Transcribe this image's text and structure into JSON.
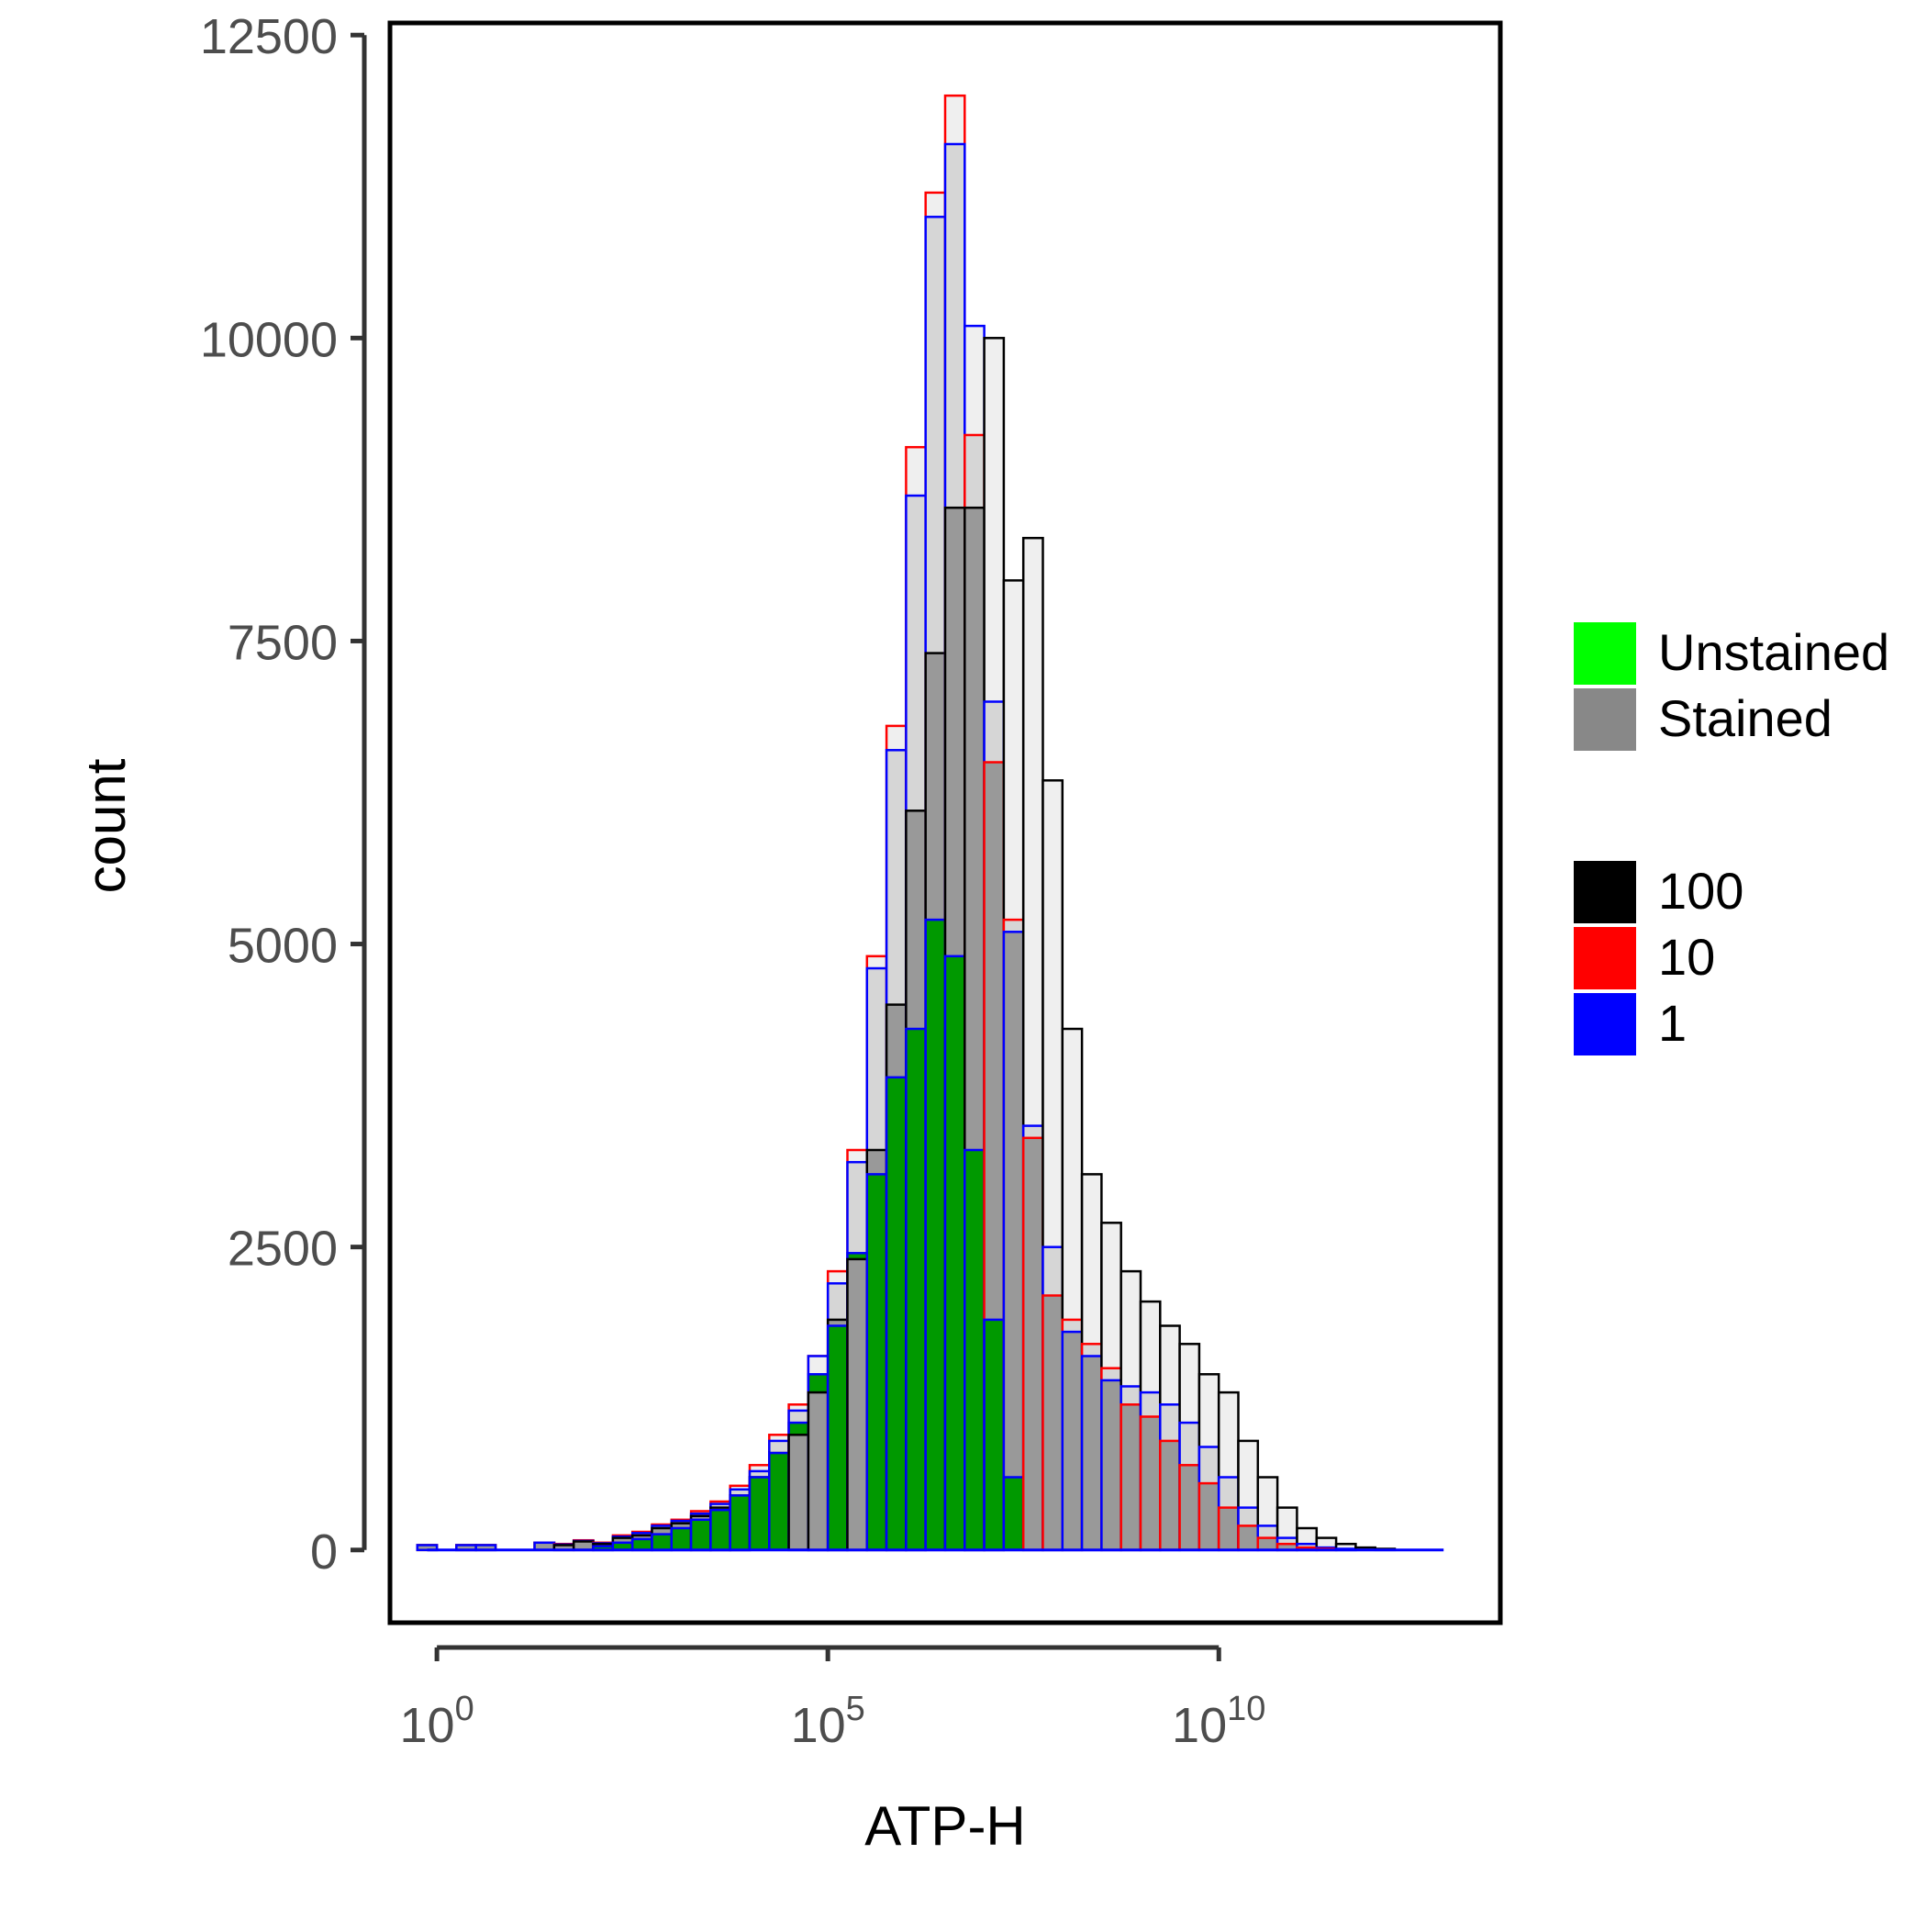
{
  "colors": {
    "unstained_fill": "#009900",
    "stained_fill": "#999999",
    "stained_light_fill": "#efefef",
    "series_100": "#000000",
    "series_10": "#ff0000",
    "series_1": "#0000ff",
    "legend_unstained": "#00ff00",
    "legend_stained": "#888888"
  },
  "chart_data": {
    "type": "histogram",
    "title": "",
    "xlabel": "ATP-H",
    "ylabel": "count",
    "x_scale": "log10",
    "xlim_log10": [
      -0.6,
      13.6
    ],
    "ylim": [
      -600,
      12600
    ],
    "y_ticks": [
      0,
      2500,
      5000,
      7500,
      10000,
      12500
    ],
    "y_tick_labels": [
      "0",
      "2500",
      "5000",
      "7500",
      "10000",
      "12500"
    ],
    "x_ticks": [
      {
        "base": "10",
        "exp": "0",
        "value_log10": 0
      },
      {
        "base": "10",
        "exp": "5",
        "value_log10": 5
      },
      {
        "base": "10",
        "exp": "10",
        "value_log10": 10
      }
    ],
    "grid": false,
    "legend_placement": "right",
    "legend": {
      "fill": [
        {
          "label": "Unstained",
          "color": "#00ff00"
        },
        {
          "label": "Stained",
          "color": "#888888"
        }
      ],
      "outline": [
        {
          "label": "100",
          "color": "#000000"
        },
        {
          "label": "10",
          "color": "#ff0000"
        },
        {
          "label": "1",
          "color": "#0000ff"
        }
      ]
    },
    "bin_width_log10": 0.25,
    "bins_log10": [
      -0.125,
      0.125,
      0.375,
      0.625,
      0.875,
      1.125,
      1.375,
      1.625,
      1.875,
      2.125,
      2.375,
      2.625,
      2.875,
      3.125,
      3.375,
      3.625,
      3.875,
      4.125,
      4.375,
      4.625,
      4.875,
      5.125,
      5.375,
      5.625,
      5.875,
      6.125,
      6.375,
      6.625,
      6.875,
      7.125,
      7.375,
      7.625,
      7.875,
      8.125,
      8.375,
      8.625,
      8.875,
      9.125,
      9.375,
      9.625,
      9.875,
      10.125,
      10.375,
      10.625,
      10.875,
      11.125,
      11.375,
      11.625,
      11.875,
      12.125,
      12.375,
      12.625,
      12.875
    ],
    "series": [
      {
        "name": "Stained",
        "outline": "100",
        "values": [
          40,
          0,
          40,
          40,
          0,
          0,
          60,
          40,
          70,
          50,
          100,
          120,
          180,
          220,
          280,
          350,
          450,
          600,
          800,
          950,
          1300,
          1900,
          2400,
          3300,
          4500,
          6100,
          7400,
          8600,
          8600,
          10000,
          8000,
          8350,
          6350,
          4300,
          3100,
          2700,
          2300,
          2050,
          1850,
          1700,
          1450,
          1300,
          900,
          600,
          350,
          180,
          100,
          50,
          20,
          10,
          0,
          0,
          0
        ]
      },
      {
        "name": "Stained",
        "outline": "10",
        "values": [
          40,
          0,
          40,
          40,
          0,
          0,
          60,
          50,
          80,
          60,
          120,
          150,
          210,
          250,
          320,
          400,
          530,
          700,
          950,
          1200,
          1600,
          2300,
          3300,
          4900,
          6800,
          9100,
          11200,
          12000,
          9200,
          6500,
          5200,
          3400,
          2100,
          1900,
          1700,
          1500,
          1200,
          1100,
          900,
          700,
          550,
          350,
          200,
          100,
          50,
          20,
          10,
          0,
          0,
          0,
          0,
          0,
          0
        ]
      },
      {
        "name": "Stained",
        "outline": "1",
        "values": [
          40,
          0,
          40,
          40,
          0,
          0,
          60,
          45,
          75,
          55,
          110,
          140,
          200,
          240,
          300,
          380,
          500,
          650,
          900,
          1150,
          1600,
          2200,
          3200,
          4800,
          6600,
          8700,
          11000,
          11600,
          10100,
          7000,
          5100,
          3500,
          2500,
          1800,
          1600,
          1400,
          1350,
          1300,
          1200,
          1050,
          850,
          600,
          350,
          200,
          100,
          50,
          20,
          10,
          0,
          0,
          0,
          0,
          0
        ]
      },
      {
        "name": "Unstained",
        "outline": "",
        "values": [
          0,
          0,
          0,
          0,
          0,
          0,
          0,
          0,
          0,
          30,
          60,
          90,
          130,
          180,
          250,
          330,
          450,
          600,
          800,
          1050,
          1450,
          1850,
          2450,
          3100,
          3900,
          4300,
          5200,
          4900,
          3300,
          1900,
          600,
          0,
          0,
          0,
          0,
          0,
          0,
          0,
          0,
          0,
          0,
          0,
          0,
          0,
          0,
          0,
          0,
          0,
          0,
          0,
          0,
          0,
          0
        ]
      }
    ]
  }
}
